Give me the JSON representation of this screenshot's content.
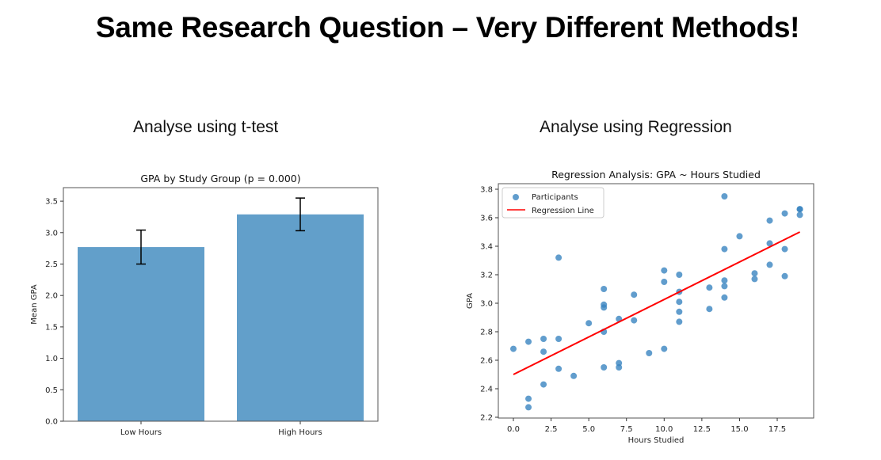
{
  "slide": {
    "title": "Same Research Question – Very Different Methods!",
    "left_subtitle": "Analyse using t-test",
    "right_subtitle": "Analyse using Regression"
  },
  "chart_data": [
    {
      "type": "bar",
      "title": "GPA by Study Group (p = 0.000)",
      "xlabel": "",
      "ylabel": "Mean GPA",
      "categories": [
        "Low Hours",
        "High Hours"
      ],
      "values": [
        2.77,
        3.29
      ],
      "error": [
        0.27,
        0.26
      ],
      "ylim": [
        0,
        3.7
      ],
      "yticks": [
        0.0,
        0.5,
        1.0,
        1.5,
        2.0,
        2.5,
        3.0,
        3.5
      ],
      "ytick_labels": [
        "0.0",
        "0.5",
        "1.0",
        "1.5",
        "2.0",
        "2.5",
        "3.0",
        "3.5"
      ],
      "color": "#629fca",
      "grid": false
    },
    {
      "type": "scatter",
      "title": "Regression Analysis: GPA ~ Hours Studied",
      "xlabel": "Hours Studied",
      "ylabel": "GPA",
      "xlim": [
        -1,
        20
      ],
      "ylim": [
        2.2,
        3.82
      ],
      "xticks": [
        0.0,
        2.5,
        5.0,
        7.5,
        10.0,
        12.5,
        15.0,
        17.5
      ],
      "xtick_labels": [
        "0.0",
        "2.5",
        "5.0",
        "7.5",
        "10.0",
        "12.5",
        "15.0",
        "17.5"
      ],
      "yticks": [
        2.2,
        2.4,
        2.6,
        2.8,
        3.0,
        3.2,
        3.4,
        3.6,
        3.8
      ],
      "ytick_labels": [
        "2.2",
        "2.4",
        "2.6",
        "2.8",
        "3.0",
        "3.2",
        "3.4",
        "3.6",
        "3.8"
      ],
      "legend": {
        "position": "upper left",
        "entries": [
          "Participants",
          "Regression Line"
        ]
      },
      "series": [
        {
          "name": "Participants",
          "color": "#3a85c0",
          "points": [
            [
              0,
              2.68
            ],
            [
              1,
              2.73
            ],
            [
              1,
              2.33
            ],
            [
              1,
              2.27
            ],
            [
              2,
              2.75
            ],
            [
              2,
              2.66
            ],
            [
              2,
              2.43
            ],
            [
              3,
              3.32
            ],
            [
              3,
              2.75
            ],
            [
              3,
              2.54
            ],
            [
              4,
              2.49
            ],
            [
              5,
              2.86
            ],
            [
              6,
              3.1
            ],
            [
              6,
              2.99
            ],
            [
              6,
              2.97
            ],
            [
              6,
              2.8
            ],
            [
              6,
              2.55
            ],
            [
              7,
              2.89
            ],
            [
              7,
              2.58
            ],
            [
              7,
              2.55
            ],
            [
              8,
              3.06
            ],
            [
              8,
              2.88
            ],
            [
              9,
              2.65
            ],
            [
              10,
              3.23
            ],
            [
              10,
              3.15
            ],
            [
              10,
              2.68
            ],
            [
              11,
              3.2
            ],
            [
              11,
              3.08
            ],
            [
              11,
              3.01
            ],
            [
              11,
              2.94
            ],
            [
              11,
              2.87
            ],
            [
              13,
              3.11
            ],
            [
              13,
              2.96
            ],
            [
              14,
              3.75
            ],
            [
              14,
              3.38
            ],
            [
              14,
              3.16
            ],
            [
              14,
              3.12
            ],
            [
              14,
              3.04
            ],
            [
              15,
              3.47
            ],
            [
              16,
              3.21
            ],
            [
              16,
              3.17
            ],
            [
              17,
              3.58
            ],
            [
              17,
              3.42
            ],
            [
              17,
              3.27
            ],
            [
              18,
              3.63
            ],
            [
              18,
              3.38
            ],
            [
              18,
              3.19
            ],
            [
              19,
              3.66
            ],
            [
              19,
              3.66
            ],
            [
              19,
              3.62
            ]
          ]
        },
        {
          "name": "Regression Line",
          "color": "#ff0000",
          "line": {
            "x0": 0,
            "y0": 2.5,
            "x1": 19,
            "y1": 3.5
          }
        }
      ],
      "grid": false
    }
  ]
}
